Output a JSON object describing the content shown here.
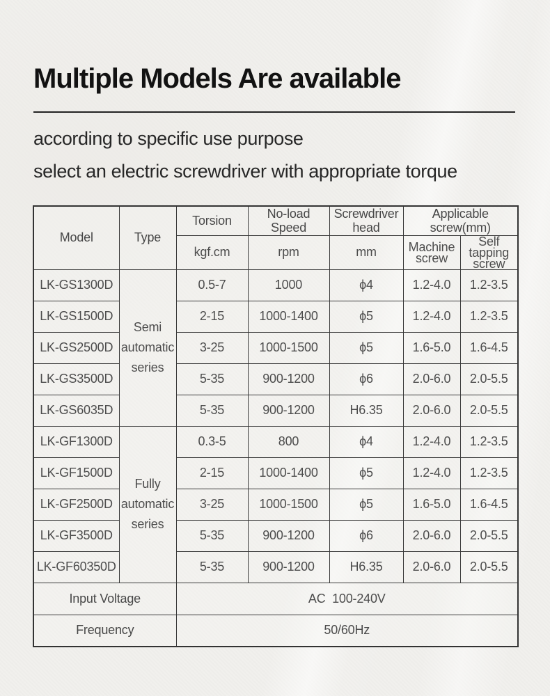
{
  "header": {
    "title": "Multiple Models Are available",
    "subtitle1": "according to specific use purpose",
    "subtitle2": "select an electric screwdriver with appropriate torque"
  },
  "table": {
    "columns": {
      "model": "Model",
      "type": "Type",
      "torsion": "Torsion",
      "torsion_unit": "kgf.cm",
      "noload_speed": "No-load Speed",
      "noload_unit": "rpm",
      "screwdriver_head": "Screwdriver head",
      "head_unit": "mm",
      "applicable_screw": "Applicable screw(mm)",
      "machine_screw": "Machine screw",
      "self_tapping_screw": "Self tapping screw"
    },
    "series": [
      {
        "type_label": "Semi automatic series",
        "rows": [
          {
            "model": "LK-GS1300D",
            "torsion": "0.5-7",
            "speed": "1000",
            "head": "ϕ4",
            "machine_screw": "1.2-4.0",
            "self_tapping": "1.2-3.5"
          },
          {
            "model": "LK-GS1500D",
            "torsion": "2-15",
            "speed": "1000-1400",
            "head": "ϕ5",
            "machine_screw": "1.2-4.0",
            "self_tapping": "1.2-3.5"
          },
          {
            "model": "LK-GS2500D",
            "torsion": "3-25",
            "speed": "1000-1500",
            "head": "ϕ5",
            "machine_screw": "1.6-5.0",
            "self_tapping": "1.6-4.5"
          },
          {
            "model": "LK-GS3500D",
            "torsion": "5-35",
            "speed": "900-1200",
            "head": "ϕ6",
            "machine_screw": "2.0-6.0",
            "self_tapping": "2.0-5.5"
          },
          {
            "model": "LK-GS6035D",
            "torsion": "5-35",
            "speed": "900-1200",
            "head": "H6.35",
            "machine_screw": "2.0-6.0",
            "self_tapping": "2.0-5.5"
          }
        ]
      },
      {
        "type_label": "Fully automatic series",
        "rows": [
          {
            "model": "LK-GF1300D",
            "torsion": "0.3-5",
            "speed": "800",
            "head": "ϕ4",
            "machine_screw": "1.2-4.0",
            "self_tapping": "1.2-3.5"
          },
          {
            "model": "LK-GF1500D",
            "torsion": "2-15",
            "speed": "1000-1400",
            "head": "ϕ5",
            "machine_screw": "1.2-4.0",
            "self_tapping": "1.2-3.5"
          },
          {
            "model": "LK-GF2500D",
            "torsion": "3-25",
            "speed": "1000-1500",
            "head": "ϕ5",
            "machine_screw": "1.6-5.0",
            "self_tapping": "1.6-4.5"
          },
          {
            "model": "LK-GF3500D",
            "torsion": "5-35",
            "speed": "900-1200",
            "head": "ϕ6",
            "machine_screw": "2.0-6.0",
            "self_tapping": "2.0-5.5"
          },
          {
            "model": "LK-GF60350D",
            "torsion": "5-35",
            "speed": "900-1200",
            "head": "H6.35",
            "machine_screw": "2.0-6.0",
            "self_tapping": "2.0-5.5"
          }
        ]
      }
    ],
    "footer": [
      {
        "label": "Input Voltage",
        "value": "AC  100-240V"
      },
      {
        "label": "Frequency",
        "value": "50/60Hz"
      }
    ]
  }
}
